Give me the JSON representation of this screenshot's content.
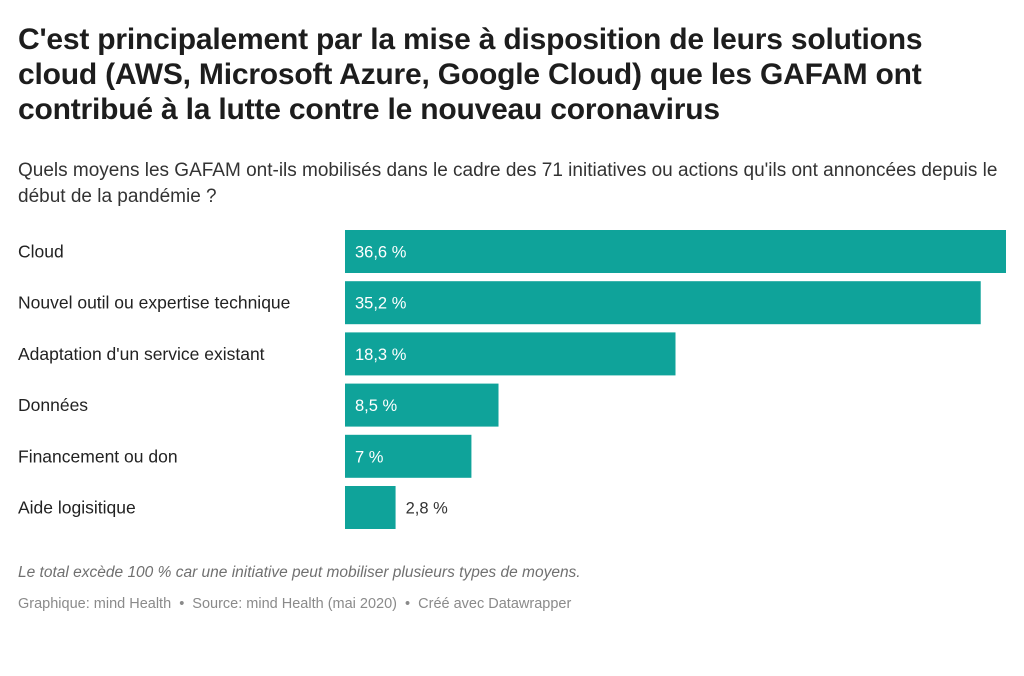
{
  "title": "C'est principalement par la mise à disposition de leurs solutions cloud (AWS, Microsoft Azure, Google Cloud) que les GAFAM ont contribué à la lutte contre le nouveau coronavirus",
  "subtitle": "Quels moyens les GAFAM ont-ils mobilisés dans le cadre des 71 initiatives ou actions qu'ils ont annoncées depuis le début de la pandémie ?",
  "notes": "Le total excède 100 % car une initiative peut mobiliser plusieurs types de moyens.",
  "footer": {
    "graphic": "Graphique: mind Health",
    "source": "Source: mind Health (mai 2020)",
    "credit": "Créé avec Datawrapper",
    "separator": "•"
  },
  "colors": {
    "bar": "#0fa39a",
    "label_inside": "#ffffff",
    "label_outside": "#333333"
  },
  "chart_data": {
    "type": "bar",
    "orientation": "horizontal",
    "categories": [
      "Cloud",
      "Nouvel outil ou expertise technique",
      "Adaptation d'un service existant",
      "Données",
      "Financement ou don",
      "Aide logisitique"
    ],
    "values": [
      36.6,
      35.2,
      18.3,
      8.5,
      7,
      2.8
    ],
    "value_labels": [
      "36,6 %",
      "35,2 %",
      "18,3 %",
      "8,5 %",
      "7 %",
      "2,8 %"
    ],
    "unit": "%",
    "xlim": [
      0,
      36.6
    ],
    "grid": false,
    "legend": "none"
  }
}
